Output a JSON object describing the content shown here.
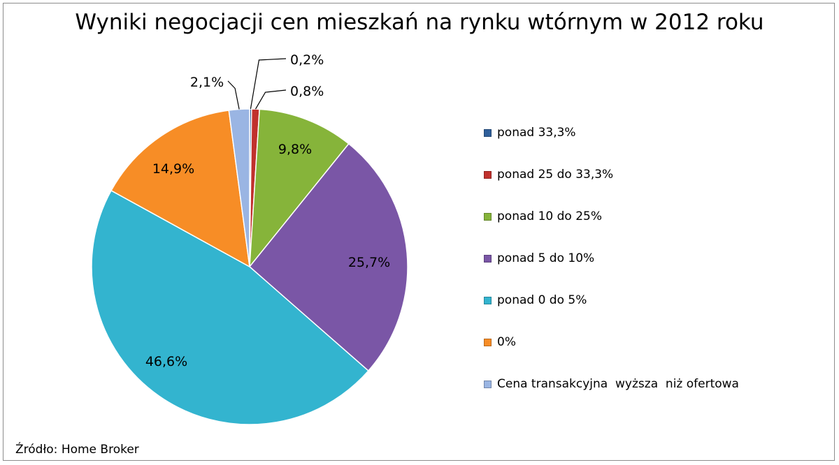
{
  "chart_data": {
    "type": "pie",
    "title": "Wyniki negocjacji cen mieszkań na rynku wtórnym w 2012 roku",
    "categories": [
      "ponad 33,3%",
      "ponad 25 do 33,3%",
      "ponad 10 do 25%",
      "ponad 5 do 10%",
      "ponad 0 do 5%",
      "0%",
      "Cena transakcyjna  wyższa  niż ofertowa"
    ],
    "values": [
      0.2,
      0.8,
      9.8,
      25.7,
      46.6,
      14.9,
      2.1
    ],
    "data_labels": [
      "0,2%",
      "0,8%",
      "9,8%",
      "25,7%",
      "46,6%",
      "14,9%",
      "2,1%"
    ],
    "colors": [
      "#2f5f9a",
      "#c0312d",
      "#86b43a",
      "#7a56a6",
      "#33b4cf",
      "#f78d26",
      "#9ab5e3"
    ],
    "legend_position": "right"
  },
  "source": "Źródło: Home Broker"
}
